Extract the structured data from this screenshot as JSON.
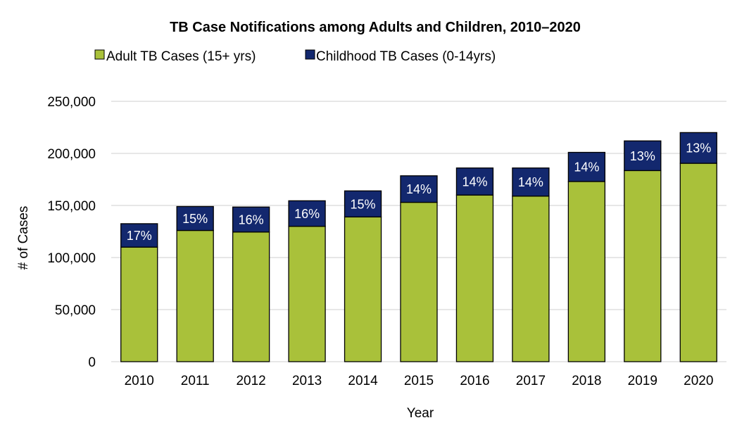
{
  "chart_data": {
    "type": "bar",
    "stacked": true,
    "title": "TB Case Notifications among Adults and Children, 2010–2020",
    "xlabel": "Year",
    "ylabel": "# of Cases",
    "ylim": [
      0,
      250000
    ],
    "yticks": [
      "0",
      "50,000",
      "100,000",
      "150,000",
      "200,000",
      "250,000"
    ],
    "ytick_values": [
      0,
      50000,
      100000,
      150000,
      200000,
      250000
    ],
    "grid": true,
    "legend_position": "top-left",
    "categories": [
      "2010",
      "2011",
      "2012",
      "2013",
      "2014",
      "2015",
      "2016",
      "2017",
      "2018",
      "2019",
      "2020"
    ],
    "series": [
      {
        "name": "Adult TB Cases (15+ yrs)",
        "color": "#a9c13a",
        "values": [
          110000,
          126000,
          124500,
          130000,
          139000,
          153000,
          160000,
          159000,
          173000,
          183500,
          190500
        ]
      },
      {
        "name": "Childhood TB Cases (0-14yrs)",
        "color": "#13286e",
        "values": [
          22500,
          23000,
          24000,
          24500,
          25000,
          25500,
          26000,
          27000,
          28000,
          28500,
          29500
        ]
      }
    ],
    "data_labels": [
      "17%",
      "15%",
      "16%",
      "16%",
      "15%",
      "14%",
      "14%",
      "14%",
      "14%",
      "13%",
      "13%"
    ]
  }
}
